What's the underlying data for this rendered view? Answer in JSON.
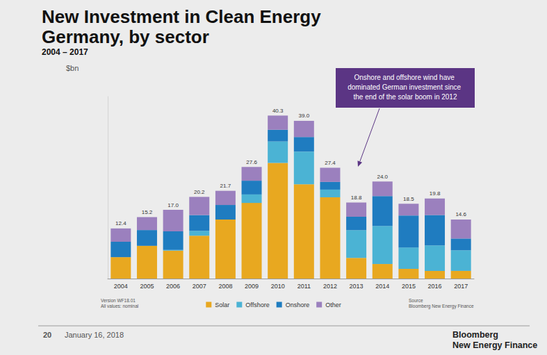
{
  "chart_data": {
    "type": "bar",
    "stacked": true,
    "title": "New Investment in Clean Energy Germany, by sector",
    "subtitle": "2004 – 2017",
    "ylabel": "$bn",
    "categories": [
      "2004",
      "2005",
      "2006",
      "2007",
      "2008",
      "2009",
      "2010",
      "2011",
      "2012",
      "2013",
      "2014",
      "2015",
      "2016",
      "2017"
    ],
    "series": [
      {
        "name": "Solar",
        "color": "#e8a820",
        "values": [
          5.3,
          8.1,
          6.9,
          10.6,
          14.6,
          18.7,
          28.6,
          23.3,
          20.1,
          5.1,
          3.6,
          2.4,
          1.9,
          1.9
        ]
      },
      {
        "name": "Offshore",
        "color": "#4bb3d4",
        "values": [
          0,
          0,
          0.2,
          1.2,
          0,
          2.1,
          5.3,
          8.1,
          1.9,
          6.9,
          9.4,
          5.3,
          6.3,
          5.1
        ]
      },
      {
        "name": "Onshore",
        "color": "#1f7cc0",
        "values": [
          3.8,
          3.9,
          4.6,
          3.9,
          3.6,
          3.4,
          2.9,
          3.6,
          1.9,
          3.3,
          7.4,
          7.9,
          7.5,
          2.9
        ]
      },
      {
        "name": "Other",
        "color": "#9b80be",
        "values": [
          3.3,
          3.2,
          5.3,
          4.5,
          3.5,
          3.4,
          3.5,
          4.0,
          3.5,
          3.5,
          3.6,
          2.9,
          4.1,
          4.7
        ]
      }
    ],
    "totals": {
      "values": [
        12.4,
        15.2,
        17.0,
        20.2,
        21.7,
        27.6,
        40.3,
        39.0,
        27.4,
        18.8,
        24.0,
        18.5,
        19.8,
        14.6
      ],
      "value_labels": [
        "12.4",
        "15.2",
        "17.0",
        "20.2",
        "21.7",
        "27.6",
        "40.3",
        "39.0",
        "27.4",
        "18.8",
        "24.0",
        "18.5",
        "19.8",
        "14.6"
      ]
    },
    "ylim": [
      0,
      45
    ],
    "grid": false,
    "tick_labels": "x",
    "legend": "bottom",
    "annotation": "Onshore and offshore wind have dominated German investment since the end of the solar boom in 2012",
    "notes": "Version WF18.01\nAll values: nominal",
    "source": "Source\nBloomberg New Energy Finance",
    "footer": {
      "page": "20",
      "date": "January 16, 2018",
      "publisher": "Bloomberg\nNew Energy Finance"
    }
  }
}
